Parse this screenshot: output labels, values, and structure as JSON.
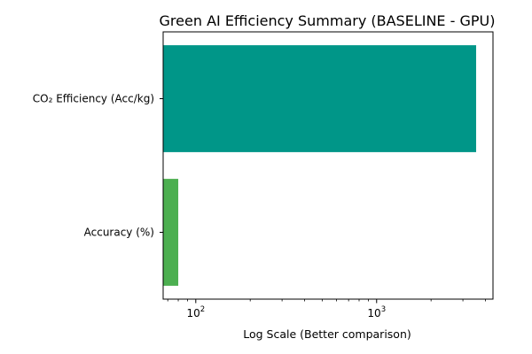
{
  "chart_data": {
    "type": "bar",
    "orientation": "horizontal",
    "title": "Green AI Efficiency Summary (BASELINE - GPU)",
    "xlabel": "Log Scale (Better comparison)",
    "ylabel": "",
    "xscale": "log",
    "xlim": [
      66,
      4400
    ],
    "x_ticks": [
      {
        "value": 100,
        "base": "10",
        "exp": "2"
      },
      {
        "value": 1000,
        "base": "10",
        "exp": "3"
      }
    ],
    "grid": false,
    "categories": [
      "CO₂ Efficiency (Acc/kg)",
      "Accuracy (%)"
    ],
    "values": [
      3550,
      80
    ],
    "colors": [
      "#009688",
      "#4caf50"
    ]
  }
}
